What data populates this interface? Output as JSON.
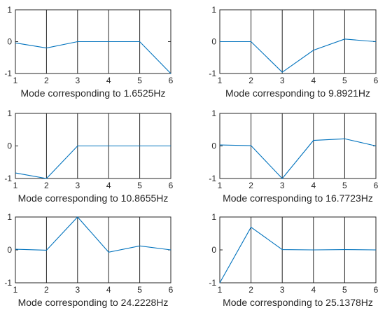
{
  "line_color": "#0072BD",
  "grid_color": "#262626",
  "chart_data": [
    {
      "type": "line",
      "x": [
        1,
        2,
        3,
        4,
        5,
        6
      ],
      "values": [
        -0.04,
        -0.2,
        0.0,
        0.0,
        0.0,
        -1.0
      ],
      "xlabel": "Mode corresponding to 1.6525Hz",
      "xlim": [
        1,
        6
      ],
      "ylim": [
        -1,
        1
      ],
      "xticks": [
        "1",
        "2",
        "3",
        "4",
        "5",
        "6"
      ],
      "yticks": [
        "-1",
        "0",
        "1"
      ],
      "grid": "x-only"
    },
    {
      "type": "line",
      "x": [
        1,
        2,
        3,
        4,
        5,
        6
      ],
      "values": [
        0.0,
        0.0,
        -0.96,
        -0.27,
        0.08,
        0.0
      ],
      "xlabel": "Mode corresponding to 9.8921Hz",
      "xlim": [
        1,
        6
      ],
      "ylim": [
        -1,
        1
      ],
      "xticks": [
        "1",
        "2",
        "3",
        "4",
        "5",
        "6"
      ],
      "yticks": [
        "-1",
        "0",
        "1"
      ],
      "grid": "x-only"
    },
    {
      "type": "line",
      "x": [
        1,
        2,
        3,
        4,
        5,
        6
      ],
      "values": [
        -0.83,
        -1.0,
        0.0,
        0.0,
        0.0,
        0.0
      ],
      "xlabel": "Mode corresponding to 10.8655Hz",
      "xlim": [
        1,
        6
      ],
      "ylim": [
        -1,
        1
      ],
      "xticks": [
        "1",
        "2",
        "3",
        "4",
        "5",
        "6"
      ],
      "yticks": [
        "-1",
        "0",
        "1"
      ],
      "grid": "x-only"
    },
    {
      "type": "line",
      "x": [
        1,
        2,
        3,
        4,
        5,
        6
      ],
      "values": [
        0.03,
        0.01,
        -1.0,
        0.17,
        0.22,
        0.0
      ],
      "xlabel": "Mode corresponding to 16.7723Hz",
      "xlim": [
        1,
        6
      ],
      "ylim": [
        -1,
        1
      ],
      "xticks": [
        "1",
        "2",
        "3",
        "4",
        "5",
        "6"
      ],
      "yticks": [
        "-1",
        "0",
        "1"
      ],
      "grid": "x-only"
    },
    {
      "type": "line",
      "x": [
        1,
        2,
        3,
        4,
        5,
        6
      ],
      "values": [
        0.02,
        -0.01,
        1.0,
        -0.07,
        0.12,
        0.0
      ],
      "xlabel": "Mode corresponding to 24.2228Hz",
      "xlim": [
        1,
        6
      ],
      "ylim": [
        -1,
        1
      ],
      "xticks": [
        "1",
        "2",
        "3",
        "4",
        "5",
        "6"
      ],
      "yticks": [
        "-1",
        "0",
        "1"
      ],
      "grid": "x-only"
    },
    {
      "type": "line",
      "x": [
        1,
        2,
        3,
        4,
        5,
        6
      ],
      "values": [
        -1.0,
        0.69,
        0.01,
        0.0,
        0.01,
        0.0
      ],
      "xlabel": "Mode corresponding to 25.1378Hz",
      "xlim": [
        1,
        6
      ],
      "ylim": [
        -1,
        1
      ],
      "xticks": [
        "1",
        "2",
        "3",
        "4",
        "5",
        "6"
      ],
      "yticks": [
        "-1",
        "0",
        "1"
      ],
      "grid": "x-only"
    }
  ]
}
